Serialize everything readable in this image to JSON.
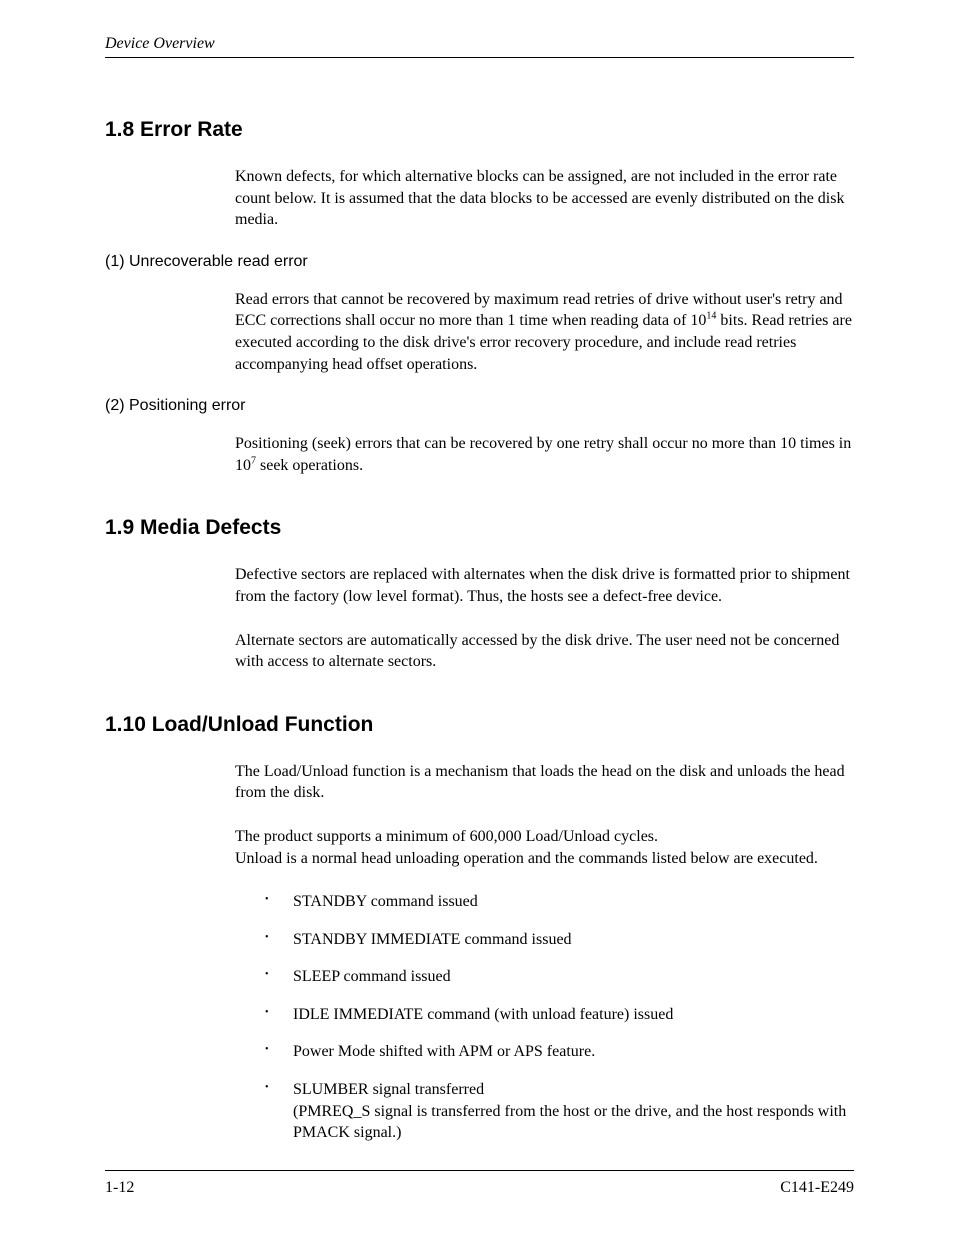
{
  "page": {
    "running_head": "Device Overview",
    "footer_left": "1-12",
    "footer_right": "C141-E249"
  },
  "sections": {
    "s18": {
      "heading": "1.8  Error Rate",
      "intro": "Known defects, for which alternative blocks can be assigned, are not included in the error rate count below.  It is assumed that the data blocks to be accessed are evenly distributed on the disk media.",
      "sub1_head": "(1)  Unrecoverable read error",
      "sub1_body_a": "Read errors that cannot be recovered by maximum read retries of drive without user's retry and ECC corrections shall occur no more than 1 time when reading data of 10",
      "sub1_exp": "14",
      "sub1_body_b": " bits. Read retries are executed according to the disk drive's error recovery procedure, and include read retries accompanying head offset operations.",
      "sub2_head": "(2)  Positioning error",
      "sub2_body_a": "Positioning (seek) errors that can be recovered by one retry shall occur no more than 10 times in 10",
      "sub2_exp": "7",
      "sub2_body_b": " seek operations."
    },
    "s19": {
      "heading": "1.9  Media Defects",
      "p1": "Defective sectors are replaced with alternates when the disk drive is formatted prior to shipment from the factory (low level format).  Thus, the hosts see a defect-free device.",
      "p2": "Alternate sectors are automatically accessed by the disk drive.  The user need not be concerned with access to alternate sectors."
    },
    "s110": {
      "heading": "1.10  Load/Unload Function",
      "p1": "The Load/Unload function is a mechanism that loads the head on the disk and unloads the head from the disk.",
      "p2a": "The product supports a minimum of 600,000 Load/Unload cycles.",
      "p2b": "Unload is a normal head unloading operation and the commands listed below are executed.",
      "items": {
        "i0": "STANDBY command issued",
        "i1": "STANDBY IMMEDIATE command issued",
        "i2": "SLEEP command issued",
        "i3": "IDLE IMMEDIATE command (with unload feature) issued",
        "i4": "Power Mode shifted with APM or APS feature.",
        "i5a": "SLUMBER signal transferred",
        "i5b": "(PMREQ_S signal is transferred from the host or the drive, and the host responds with PMACK signal.)"
      }
    }
  }
}
